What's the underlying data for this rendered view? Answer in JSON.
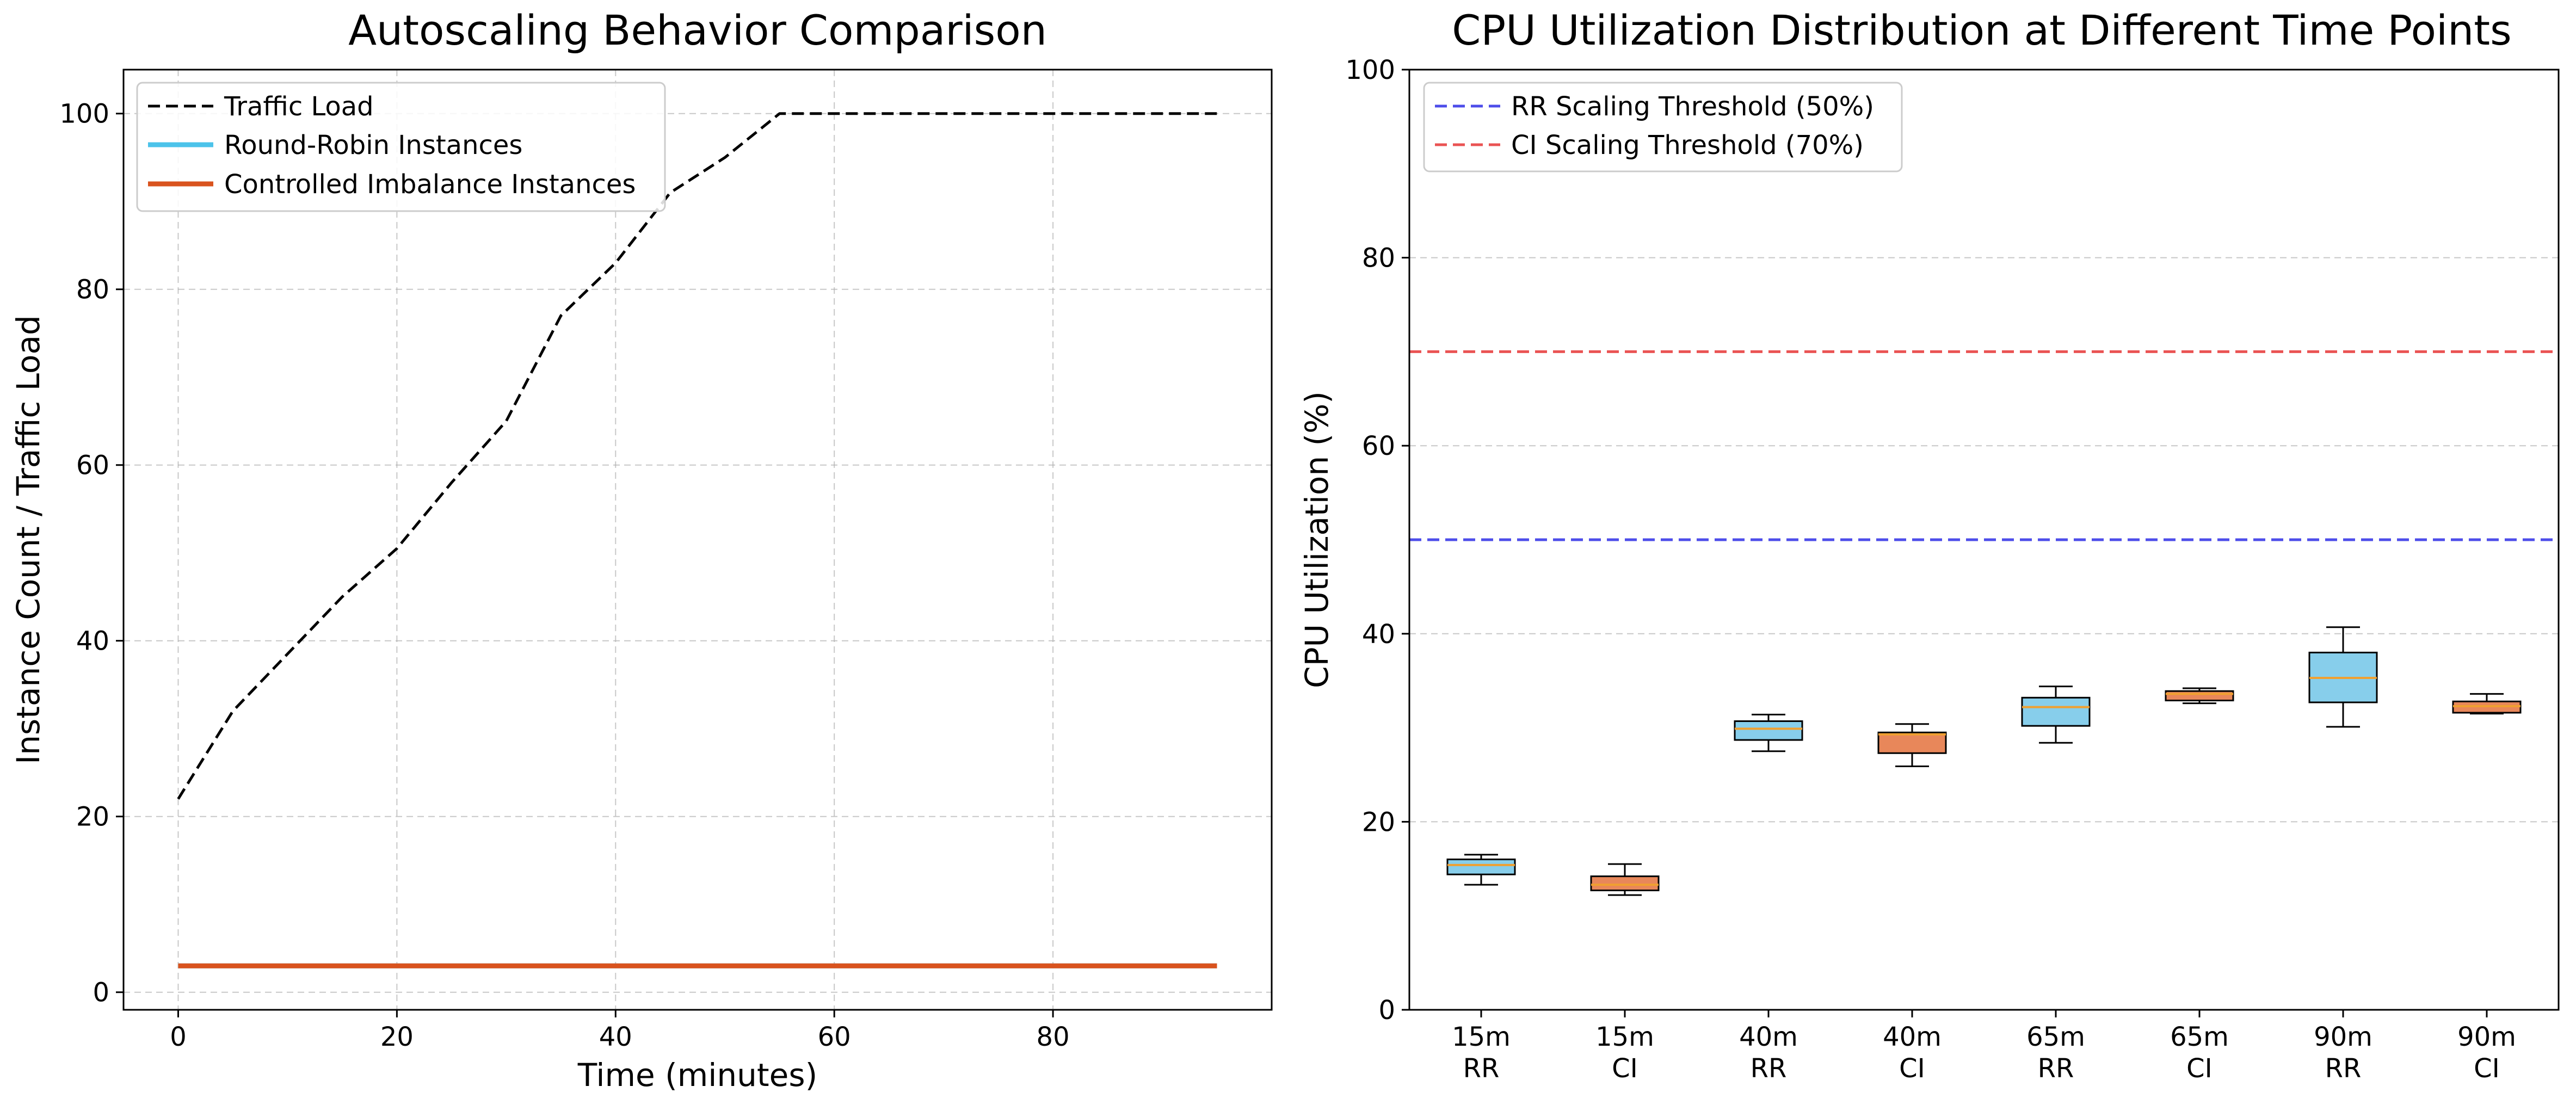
{
  "chart_data": [
    {
      "type": "line",
      "title": "Autoscaling Behavior Comparison",
      "xlabel": "Time (minutes)",
      "ylabel": "Instance Count / Traffic Load",
      "xlim": [
        -5,
        100
      ],
      "ylim": [
        -2,
        105
      ],
      "xticks": [
        0,
        20,
        40,
        60,
        80
      ],
      "yticks": [
        0,
        20,
        40,
        60,
        80,
        100
      ],
      "grid": true,
      "legend_position": "top-left",
      "x": [
        0,
        5,
        10,
        15,
        20,
        25,
        30,
        35,
        40,
        45,
        50,
        55,
        60,
        65,
        70,
        75,
        80,
        85,
        90,
        95
      ],
      "series": [
        {
          "name": "Traffic Load",
          "color": "#000000",
          "style": "dashed",
          "values": [
            22,
            32,
            38.5,
            45,
            50.5,
            58,
            65,
            77,
            83,
            91,
            95,
            100,
            100,
            100,
            100,
            100,
            100,
            100,
            100,
            100
          ]
        },
        {
          "name": "Round-Robin Instances",
          "color": "#4cc3ea",
          "style": "solid",
          "values": [
            3,
            3,
            3,
            3,
            3,
            3,
            3,
            3,
            3,
            3,
            3,
            3,
            3,
            3,
            3,
            3,
            3,
            3,
            3,
            3
          ]
        },
        {
          "name": "Controlled Imbalance Instances",
          "color": "#d9531e",
          "style": "solid",
          "values": [
            3,
            3,
            3,
            3,
            3,
            3,
            3,
            3,
            3,
            3,
            3,
            3,
            3,
            3,
            3,
            3,
            3,
            3,
            3,
            3
          ]
        }
      ]
    },
    {
      "type": "box",
      "title": "CPU Utilization Distribution at Different Time Points",
      "xlabel": "",
      "ylabel": "CPU Utilization (%)",
      "ylim": [
        0,
        100
      ],
      "yticks": [
        0,
        20,
        40,
        60,
        80,
        100
      ],
      "grid": "y",
      "legend_position": "top-left",
      "categories": [
        [
          "15m",
          "RR"
        ],
        [
          "15m",
          "CI"
        ],
        [
          "40m",
          "RR"
        ],
        [
          "40m",
          "CI"
        ],
        [
          "65m",
          "RR"
        ],
        [
          "65m",
          "CI"
        ],
        [
          "90m",
          "RR"
        ],
        [
          "90m",
          "CI"
        ]
      ],
      "boxes": [
        {
          "group": "RR",
          "whisker_low": 13.3,
          "q1": 14.4,
          "median": 15.4,
          "q3": 16.0,
          "whisker_high": 16.5
        },
        {
          "group": "CI",
          "whisker_low": 12.2,
          "q1": 12.7,
          "median": 13.3,
          "q3": 14.2,
          "whisker_high": 15.5
        },
        {
          "group": "RR",
          "whisker_low": 27.5,
          "q1": 28.7,
          "median": 29.9,
          "q3": 30.7,
          "whisker_high": 31.4
        },
        {
          "group": "CI",
          "whisker_low": 25.9,
          "q1": 27.3,
          "median": 29.3,
          "q3": 29.5,
          "whisker_high": 30.4
        },
        {
          "group": "RR",
          "whisker_low": 28.4,
          "q1": 30.2,
          "median": 32.2,
          "q3": 33.2,
          "whisker_high": 34.4
        },
        {
          "group": "CI",
          "whisker_low": 32.6,
          "q1": 32.9,
          "median": 33.6,
          "q3": 33.9,
          "whisker_high": 34.2
        },
        {
          "group": "RR",
          "whisker_low": 30.1,
          "q1": 32.7,
          "median": 35.3,
          "q3": 38.0,
          "whisker_high": 40.7
        },
        {
          "group": "CI",
          "whisker_low": 31.5,
          "q1": 31.6,
          "median": 32.3,
          "q3": 32.8,
          "whisker_high": 33.6
        }
      ],
      "group_colors": {
        "RR": "#87ceeb",
        "CI": "#e8875a"
      },
      "median_color": "#f0a030",
      "thresholds": [
        {
          "name": "RR Scaling Threshold (50%)",
          "value": 50,
          "color": "#3a3ae8"
        },
        {
          "name": "CI Scaling Threshold (70%)",
          "value": 70,
          "color": "#e84040"
        }
      ]
    }
  ]
}
